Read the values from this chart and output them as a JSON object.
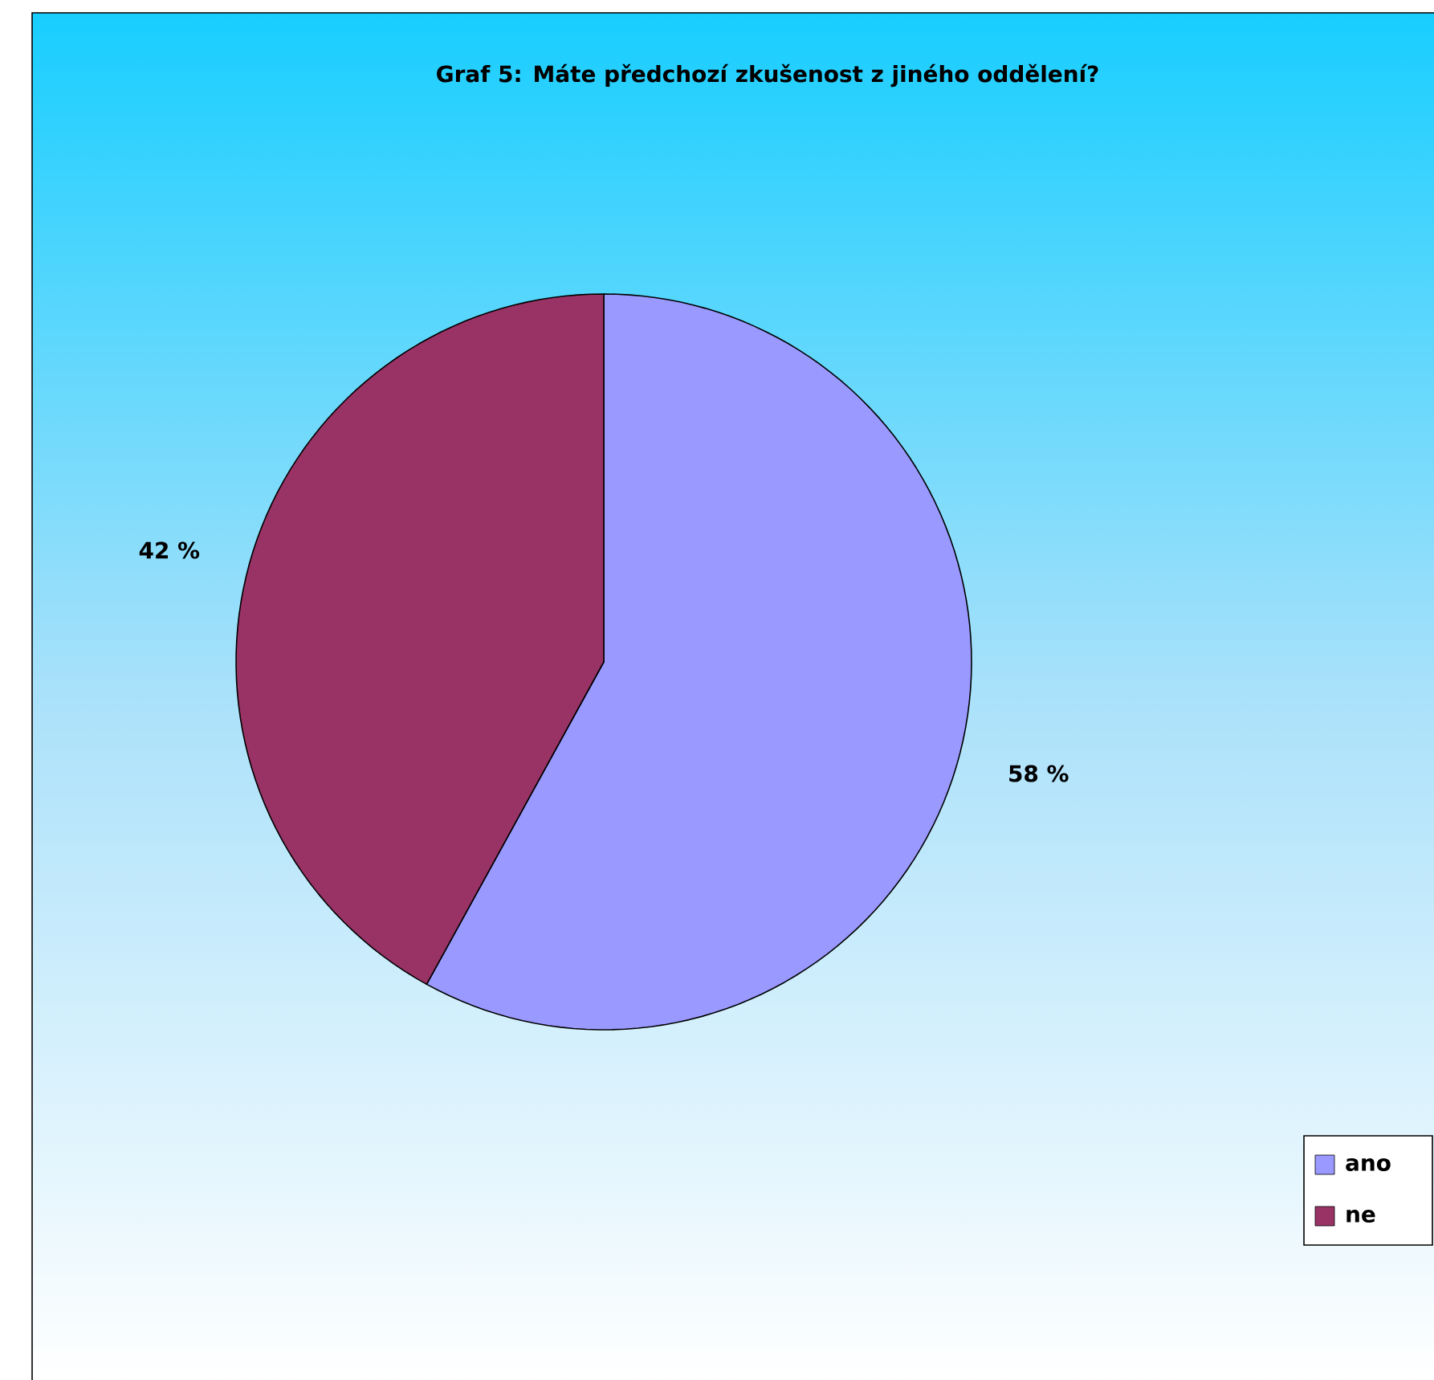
{
  "chart_data": {
    "type": "pie",
    "title": "Graf 5: Máte předchozí zkušenost z jiného oddělení?",
    "categories": [
      "ano",
      "ne"
    ],
    "values": [
      58,
      42
    ],
    "colors": [
      "#9999ff",
      "#993366"
    ],
    "value_labels": [
      "58 %",
      "42 %"
    ],
    "legend": "right"
  }
}
